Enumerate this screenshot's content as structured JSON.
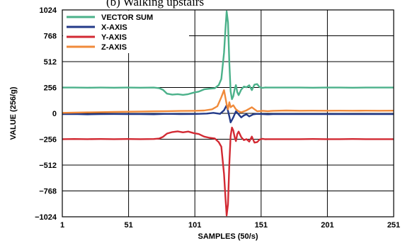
{
  "caption": "(b) Walking upstairs",
  "chart_data": {
    "type": "line",
    "xlabel": "SAMPLES (50/s)",
    "ylabel": "VALUE (256/g)",
    "xlim": [
      1,
      251
    ],
    "ylim": [
      -1024,
      1024
    ],
    "xticks": [
      1,
      51,
      101,
      151,
      201,
      251
    ],
    "yticks": [
      1024,
      768,
      512,
      256,
      0,
      -256,
      -512,
      -768,
      -1024
    ],
    "grid": true,
    "legend_position": "top-left",
    "series": [
      {
        "name": "VECTOR SUM",
        "color": "#4bb18a",
        "x": [
          1,
          10,
          20,
          30,
          40,
          50,
          60,
          70,
          74,
          77,
          80,
          84,
          88,
          92,
          96,
          100,
          104,
          108,
          112,
          116,
          119,
          121,
          123,
          124,
          125,
          126,
          127,
          128,
          129,
          130,
          131,
          132,
          133,
          134,
          136,
          138,
          140,
          142,
          144,
          146,
          148,
          150,
          152,
          154,
          156,
          158,
          160,
          170,
          180,
          190,
          200,
          210,
          220,
          230,
          240,
          251
        ],
        "y": [
          255,
          255,
          254,
          255,
          254,
          255,
          254,
          255,
          250,
          232,
          195,
          185,
          190,
          183,
          190,
          205,
          215,
          238,
          244,
          248,
          280,
          340,
          600,
          820,
          1010,
          900,
          500,
          220,
          140,
          170,
          240,
          280,
          210,
          180,
          235,
          265,
          258,
          278,
          230,
          285,
          290,
          258,
          252,
          256,
          255,
          255,
          255,
          255,
          255,
          254,
          255,
          255,
          254,
          255,
          255,
          255
        ]
      },
      {
        "name": "X-AXIS",
        "color": "#233a88",
        "x": [
          1,
          10,
          20,
          30,
          40,
          50,
          60,
          70,
          80,
          90,
          100,
          110,
          115,
          120,
          123,
          125,
          127,
          128,
          130,
          132,
          134,
          136,
          138,
          140,
          142,
          145,
          148,
          152,
          156,
          160,
          170,
          180,
          190,
          200,
          210,
          220,
          230,
          240,
          251
        ],
        "y": [
          -8,
          -6,
          -10,
          -8,
          -6,
          -8,
          -7,
          -9,
          -5,
          -8,
          -6,
          -2,
          5,
          -5,
          30,
          80,
          -30,
          -90,
          -40,
          20,
          -10,
          -40,
          -20,
          -10,
          -30,
          -10,
          -5,
          -8,
          -10,
          -8,
          -7,
          -8,
          -8,
          -8,
          -7,
          -8,
          -8,
          -7,
          -8
        ]
      },
      {
        "name": "Y-AXIS",
        "color": "#d22a33",
        "x": [
          1,
          10,
          20,
          30,
          40,
          50,
          60,
          70,
          74,
          77,
          80,
          84,
          88,
          92,
          96,
          100,
          104,
          108,
          112,
          116,
          119,
          121,
          123,
          124,
          125,
          126,
          127,
          128,
          129,
          130,
          131,
          132,
          133,
          134,
          136,
          138,
          140,
          142,
          144,
          146,
          148,
          150,
          152,
          154,
          156,
          158,
          160,
          170,
          180,
          190,
          200,
          210,
          220,
          230,
          240,
          251
        ],
        "y": [
          -255,
          -254,
          -255,
          -254,
          -255,
          -254,
          -255,
          -254,
          -250,
          -232,
          -200,
          -185,
          -178,
          -188,
          -180,
          -195,
          -205,
          -230,
          -242,
          -248,
          -285,
          -330,
          -600,
          -820,
          -1010,
          -900,
          -500,
          -225,
          -140,
          -170,
          -235,
          -275,
          -205,
          -180,
          -235,
          -265,
          -255,
          -280,
          -230,
          -290,
          -285,
          -258,
          -252,
          -256,
          -255,
          -255,
          -255,
          -255,
          -255,
          -254,
          -255,
          -255,
          -254,
          -255,
          -255,
          -255
        ]
      },
      {
        "name": "Z-AXIS",
        "color": "#f08a3a",
        "x": [
          1,
          10,
          20,
          30,
          40,
          50,
          60,
          70,
          80,
          90,
          100,
          108,
          114,
          118,
          121,
          123,
          125,
          126,
          127,
          128,
          130,
          132,
          134,
          136,
          140,
          144,
          148,
          152,
          156,
          160,
          170,
          180,
          190,
          200,
          210,
          220,
          230,
          240,
          251
        ],
        "y": [
          5,
          8,
          10,
          12,
          14,
          16,
          18,
          20,
          22,
          24,
          25,
          28,
          40,
          70,
          160,
          230,
          90,
          40,
          110,
          60,
          80,
          40,
          20,
          10,
          30,
          60,
          20,
          25,
          22,
          25,
          28,
          26,
          27,
          26,
          27,
          26,
          27,
          26,
          27
        ]
      }
    ]
  }
}
